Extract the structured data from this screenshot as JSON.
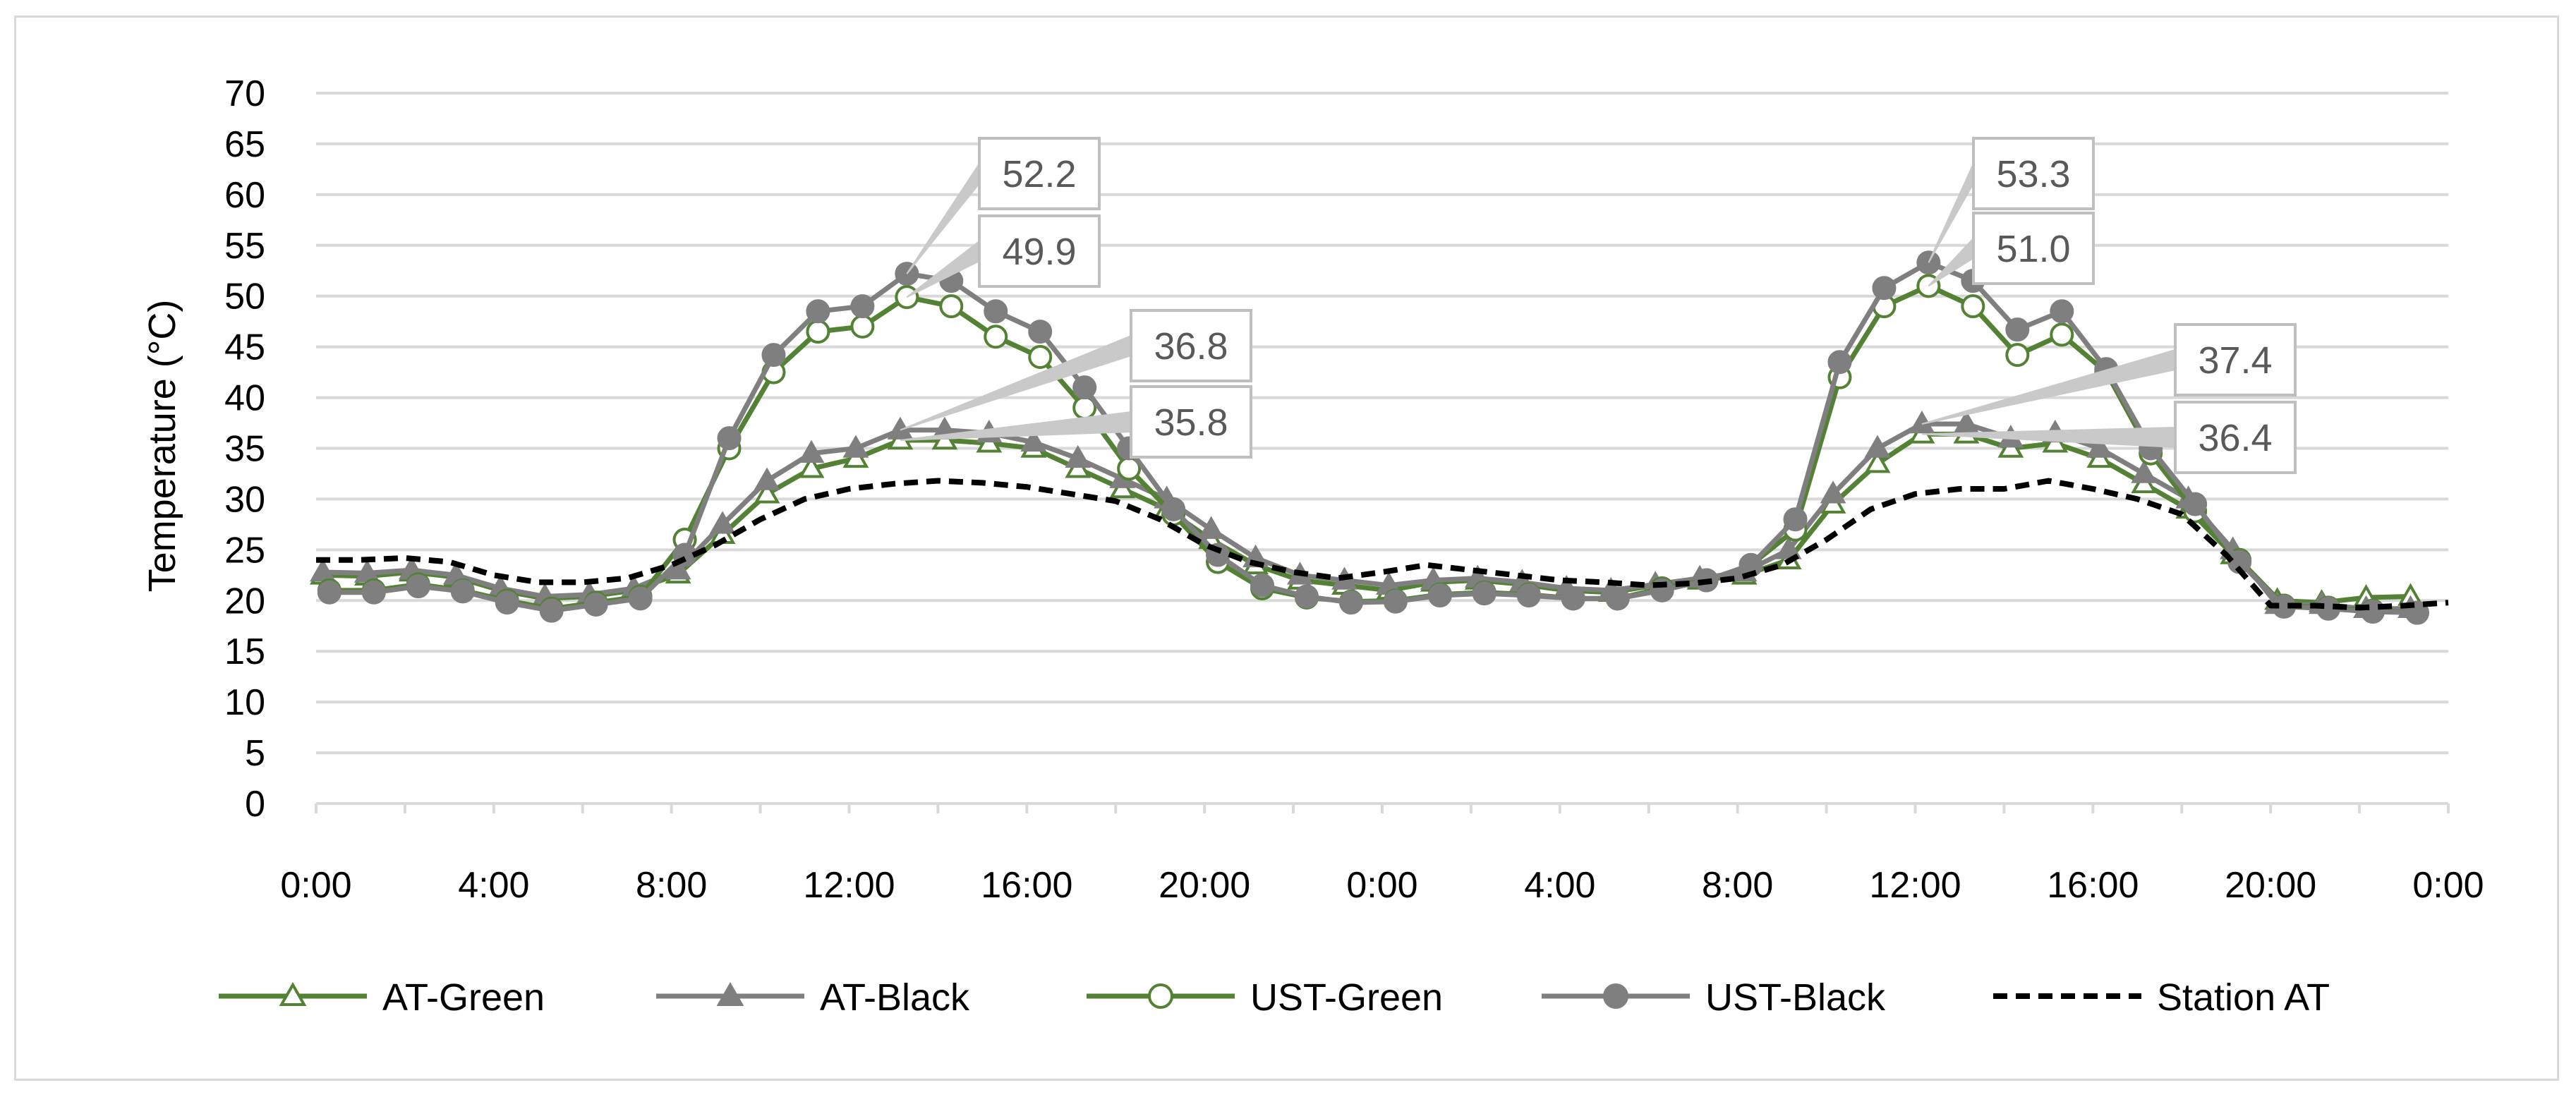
{
  "chart_data": {
    "type": "line",
    "title": "",
    "xlabel": "",
    "ylabel": "Temperature (°C)",
    "ylim": [
      0,
      70
    ],
    "y_ticks": [
      0,
      5,
      10,
      15,
      20,
      25,
      30,
      35,
      40,
      45,
      50,
      55,
      60,
      65,
      70
    ],
    "x_hours_range": [
      0,
      48
    ],
    "x_tick_labels": [
      "0:00",
      "4:00",
      "8:00",
      "12:00",
      "16:00",
      "20:00",
      "0:00",
      "4:00",
      "8:00",
      "12:00",
      "16:00",
      "20:00",
      "0:00"
    ],
    "grid": "horizontal",
    "legend_position": "bottom",
    "series": [
      {
        "name": "AT-Green",
        "color": "#548235",
        "marker": "triangle-open",
        "x": [
          0.15,
          1.15,
          2.15,
          3.15,
          4.15,
          5.15,
          6.15,
          7.15,
          8.15,
          9.15,
          10.15,
          11.15,
          12.15,
          13.15,
          14.15,
          15.15,
          16.15,
          17.15,
          18.15,
          19.15,
          20.15,
          21.15,
          22.15,
          23.15,
          24.15,
          25.15,
          26.15,
          27.15,
          28.15,
          29.15,
          30.15,
          31.15,
          32.15,
          33.15,
          34.15,
          35.15,
          36.15,
          37.15,
          38.15,
          39.15,
          40.15,
          41.15,
          42.15,
          43.15,
          44.15,
          45.15,
          46.15,
          47.15
        ],
        "values": [
          22.5,
          22.4,
          22.8,
          22.3,
          21.0,
          20.2,
          20.4,
          21.0,
          22.6,
          26.5,
          30.5,
          33.0,
          34.0,
          35.8,
          35.8,
          35.5,
          35.0,
          33.0,
          31.0,
          29.0,
          26.0,
          23.5,
          22.0,
          21.5,
          21.0,
          21.8,
          22.0,
          21.6,
          21.0,
          20.8,
          21.5,
          22.0,
          22.5,
          24.0,
          29.5,
          33.5,
          36.4,
          36.4,
          35.0,
          35.5,
          34.0,
          31.5,
          29.0,
          24.5,
          20.0,
          19.8,
          20.3,
          20.4
        ],
        "labels": {
          "13": "35.8",
          "36": "36.4"
        }
      },
      {
        "name": "AT-Black",
        "color": "#7f7f7f",
        "marker": "triangle-filled",
        "x": [
          0.15,
          1.15,
          2.15,
          3.15,
          4.15,
          5.15,
          6.15,
          7.15,
          8.15,
          9.15,
          10.15,
          11.15,
          12.15,
          13.15,
          14.15,
          15.15,
          16.15,
          17.15,
          18.15,
          19.15,
          20.15,
          21.15,
          22.15,
          23.15,
          24.15,
          25.15,
          26.15,
          27.15,
          28.15,
          29.15,
          30.15,
          31.15,
          32.15,
          33.15,
          34.15,
          35.15,
          36.15,
          37.15,
          38.15,
          39.15,
          40.15,
          41.15,
          42.15,
          43.15,
          44.15,
          45.15,
          46.15,
          47.15
        ],
        "values": [
          22.8,
          22.7,
          23.0,
          22.5,
          21.2,
          20.4,
          20.6,
          21.2,
          23.0,
          27.5,
          31.8,
          34.5,
          35.0,
          36.8,
          36.8,
          36.5,
          35.6,
          34.0,
          32.0,
          30.0,
          27.0,
          24.2,
          22.5,
          22.0,
          21.5,
          22.0,
          22.2,
          21.8,
          21.2,
          21.0,
          21.6,
          22.2,
          22.8,
          25.0,
          30.5,
          35.0,
          37.4,
          37.4,
          36.0,
          36.5,
          35.0,
          32.5,
          30.0,
          25.0,
          19.6,
          19.6,
          19.2,
          19.2
        ],
        "labels": {
          "13": "36.8",
          "36": "37.4"
        }
      },
      {
        "name": "UST-Green",
        "color": "#548235",
        "marker": "circle-open",
        "x": [
          0.3,
          1.3,
          2.3,
          3.3,
          4.3,
          5.3,
          6.3,
          7.3,
          8.3,
          9.3,
          10.3,
          11.3,
          12.3,
          13.3,
          14.3,
          15.3,
          16.3,
          17.3,
          18.3,
          19.3,
          20.3,
          21.3,
          22.3,
          23.3,
          24.3,
          25.3,
          26.3,
          27.3,
          28.3,
          29.3,
          30.3,
          31.3,
          32.3,
          33.3,
          34.3,
          35.3,
          36.3,
          37.3,
          38.3,
          39.3,
          40.3,
          41.3,
          42.3,
          43.3,
          44.3,
          45.3,
          46.3,
          47.3
        ],
        "values": [
          21.0,
          21.0,
          21.6,
          21.0,
          20.0,
          19.2,
          19.8,
          20.4,
          26.0,
          35.0,
          42.5,
          46.5,
          47.0,
          49.9,
          49.0,
          46.0,
          44.0,
          39.0,
          33.0,
          28.5,
          23.8,
          21.2,
          20.3,
          19.9,
          20.0,
          20.6,
          20.8,
          20.6,
          20.2,
          20.2,
          21.2,
          22.0,
          23.5,
          27.0,
          42.0,
          49.0,
          51.0,
          49.0,
          44.2,
          46.2,
          42.5,
          34.5,
          28.8,
          24.0,
          19.5,
          19.3,
          19.0,
          18.8
        ],
        "labels": {
          "13": "49.9",
          "36": "51.0"
        }
      },
      {
        "name": "UST-Black",
        "color": "#7f7f7f",
        "marker": "circle-filled",
        "x": [
          0.3,
          1.3,
          2.3,
          3.3,
          4.3,
          5.3,
          6.3,
          7.3,
          8.3,
          9.3,
          10.3,
          11.3,
          12.3,
          13.3,
          14.3,
          15.3,
          16.3,
          17.3,
          18.3,
          19.3,
          20.3,
          21.3,
          22.3,
          23.3,
          24.3,
          25.3,
          26.3,
          27.3,
          28.3,
          29.3,
          30.3,
          31.3,
          32.3,
          33.3,
          34.3,
          35.3,
          36.3,
          37.3,
          38.3,
          39.3,
          40.3,
          41.3,
          42.3,
          43.3,
          44.3,
          45.3,
          46.3,
          47.3
        ],
        "values": [
          20.8,
          20.8,
          21.4,
          20.9,
          19.8,
          19.0,
          19.6,
          20.2,
          24.5,
          36.0,
          44.2,
          48.5,
          49.0,
          52.2,
          51.5,
          48.5,
          46.5,
          41.0,
          35.0,
          29.0,
          24.5,
          21.5,
          20.4,
          19.8,
          19.9,
          20.5,
          20.7,
          20.5,
          20.2,
          20.2,
          21.0,
          22.0,
          23.5,
          28.0,
          43.5,
          50.8,
          53.3,
          51.5,
          46.7,
          48.5,
          42.8,
          35.0,
          29.5,
          23.8,
          19.4,
          19.2,
          18.9,
          18.8
        ],
        "labels": {
          "13": "52.2",
          "36": "53.3"
        }
      },
      {
        "name": "Station AT",
        "color": "#000000",
        "marker": "none",
        "line": "dashed",
        "x": [
          0,
          1,
          2,
          3,
          4,
          5,
          6,
          7,
          8,
          9,
          10,
          11,
          12,
          13,
          14,
          15,
          16,
          17,
          18,
          19,
          20,
          21,
          22,
          23,
          24,
          25,
          26,
          27,
          28,
          29,
          30,
          31,
          32,
          33,
          34,
          35,
          36,
          37,
          38,
          39,
          40,
          41,
          42,
          43,
          44,
          45,
          46,
          47,
          48
        ],
        "values": [
          24.0,
          24.0,
          24.2,
          23.8,
          22.5,
          21.8,
          21.8,
          22.2,
          23.5,
          25.5,
          28.0,
          30.0,
          31.0,
          31.5,
          31.8,
          31.6,
          31.2,
          30.5,
          29.8,
          28.0,
          25.5,
          23.8,
          22.8,
          22.2,
          22.8,
          23.5,
          23.0,
          22.5,
          22.0,
          21.8,
          21.5,
          21.7,
          22.2,
          23.5,
          26.0,
          29.0,
          30.5,
          31.0,
          31.0,
          31.8,
          31.0,
          30.0,
          28.5,
          24.5,
          19.5,
          19.5,
          19.3,
          19.5,
          19.8
        ]
      }
    ]
  }
}
